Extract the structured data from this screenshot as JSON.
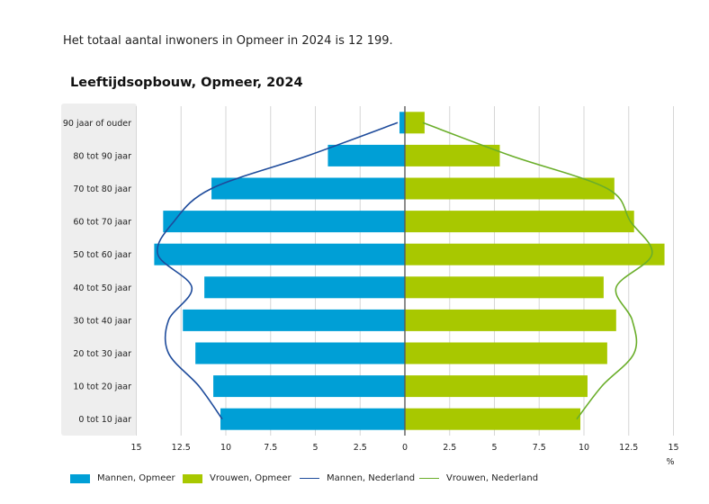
{
  "intro_text": "Het totaal aantal inwoners in Opmeer in 2024 is 12 199.",
  "chart_data": {
    "type": "bar",
    "title": "Leeftijdsopbouw, Opmeer, 2024",
    "orientation": "horizontal-population-pyramid",
    "categories": [
      "90 jaar of ouder",
      "80 tot 90 jaar",
      "70 tot 80 jaar",
      "60 tot 70 jaar",
      "50 tot 60 jaar",
      "40 tot 50 jaar",
      "30 tot 40 jaar",
      "20 tot 30 jaar",
      "10 tot 20 jaar",
      "0 tot 10 jaar"
    ],
    "xlabel": "%",
    "xlim": [
      -15,
      15
    ],
    "xticks": [
      -15,
      -12.5,
      -10,
      -7.5,
      -5,
      -2.5,
      0,
      2.5,
      5,
      7.5,
      10,
      12.5,
      15
    ],
    "xtick_labels": [
      "15",
      "12.5",
      "10",
      "7.5",
      "5",
      "2.5",
      "0",
      "2.5",
      "5",
      "7.5",
      "10",
      "12.5",
      "15"
    ],
    "grid": true,
    "legend_position": "bottom",
    "series": [
      {
        "name": "Mannen, Opmeer",
        "kind": "bar",
        "side": "left",
        "color": "#009fd6",
        "values": [
          0.3,
          4.3,
          10.8,
          13.5,
          14.0,
          11.2,
          12.4,
          11.7,
          10.7,
          10.3
        ]
      },
      {
        "name": "Vrouwen, Opmeer",
        "kind": "bar",
        "side": "right",
        "color": "#a8c800",
        "values": [
          1.1,
          5.3,
          11.7,
          12.8,
          14.5,
          11.1,
          11.8,
          11.3,
          10.2,
          9.8
        ]
      },
      {
        "name": "Mannen, Nederland",
        "kind": "line",
        "side": "left",
        "color": "#1e4b9b",
        "values": [
          0.4,
          5.4,
          10.8,
          12.9,
          13.8,
          11.9,
          13.2,
          13.2,
          11.5,
          10.2
        ]
      },
      {
        "name": "Vrouwen, Nederland",
        "kind": "line",
        "side": "right",
        "color": "#6aae2a",
        "values": [
          1.0,
          5.9,
          11.3,
          12.6,
          13.8,
          11.8,
          12.7,
          12.8,
          11.0,
          9.6
        ]
      }
    ]
  }
}
